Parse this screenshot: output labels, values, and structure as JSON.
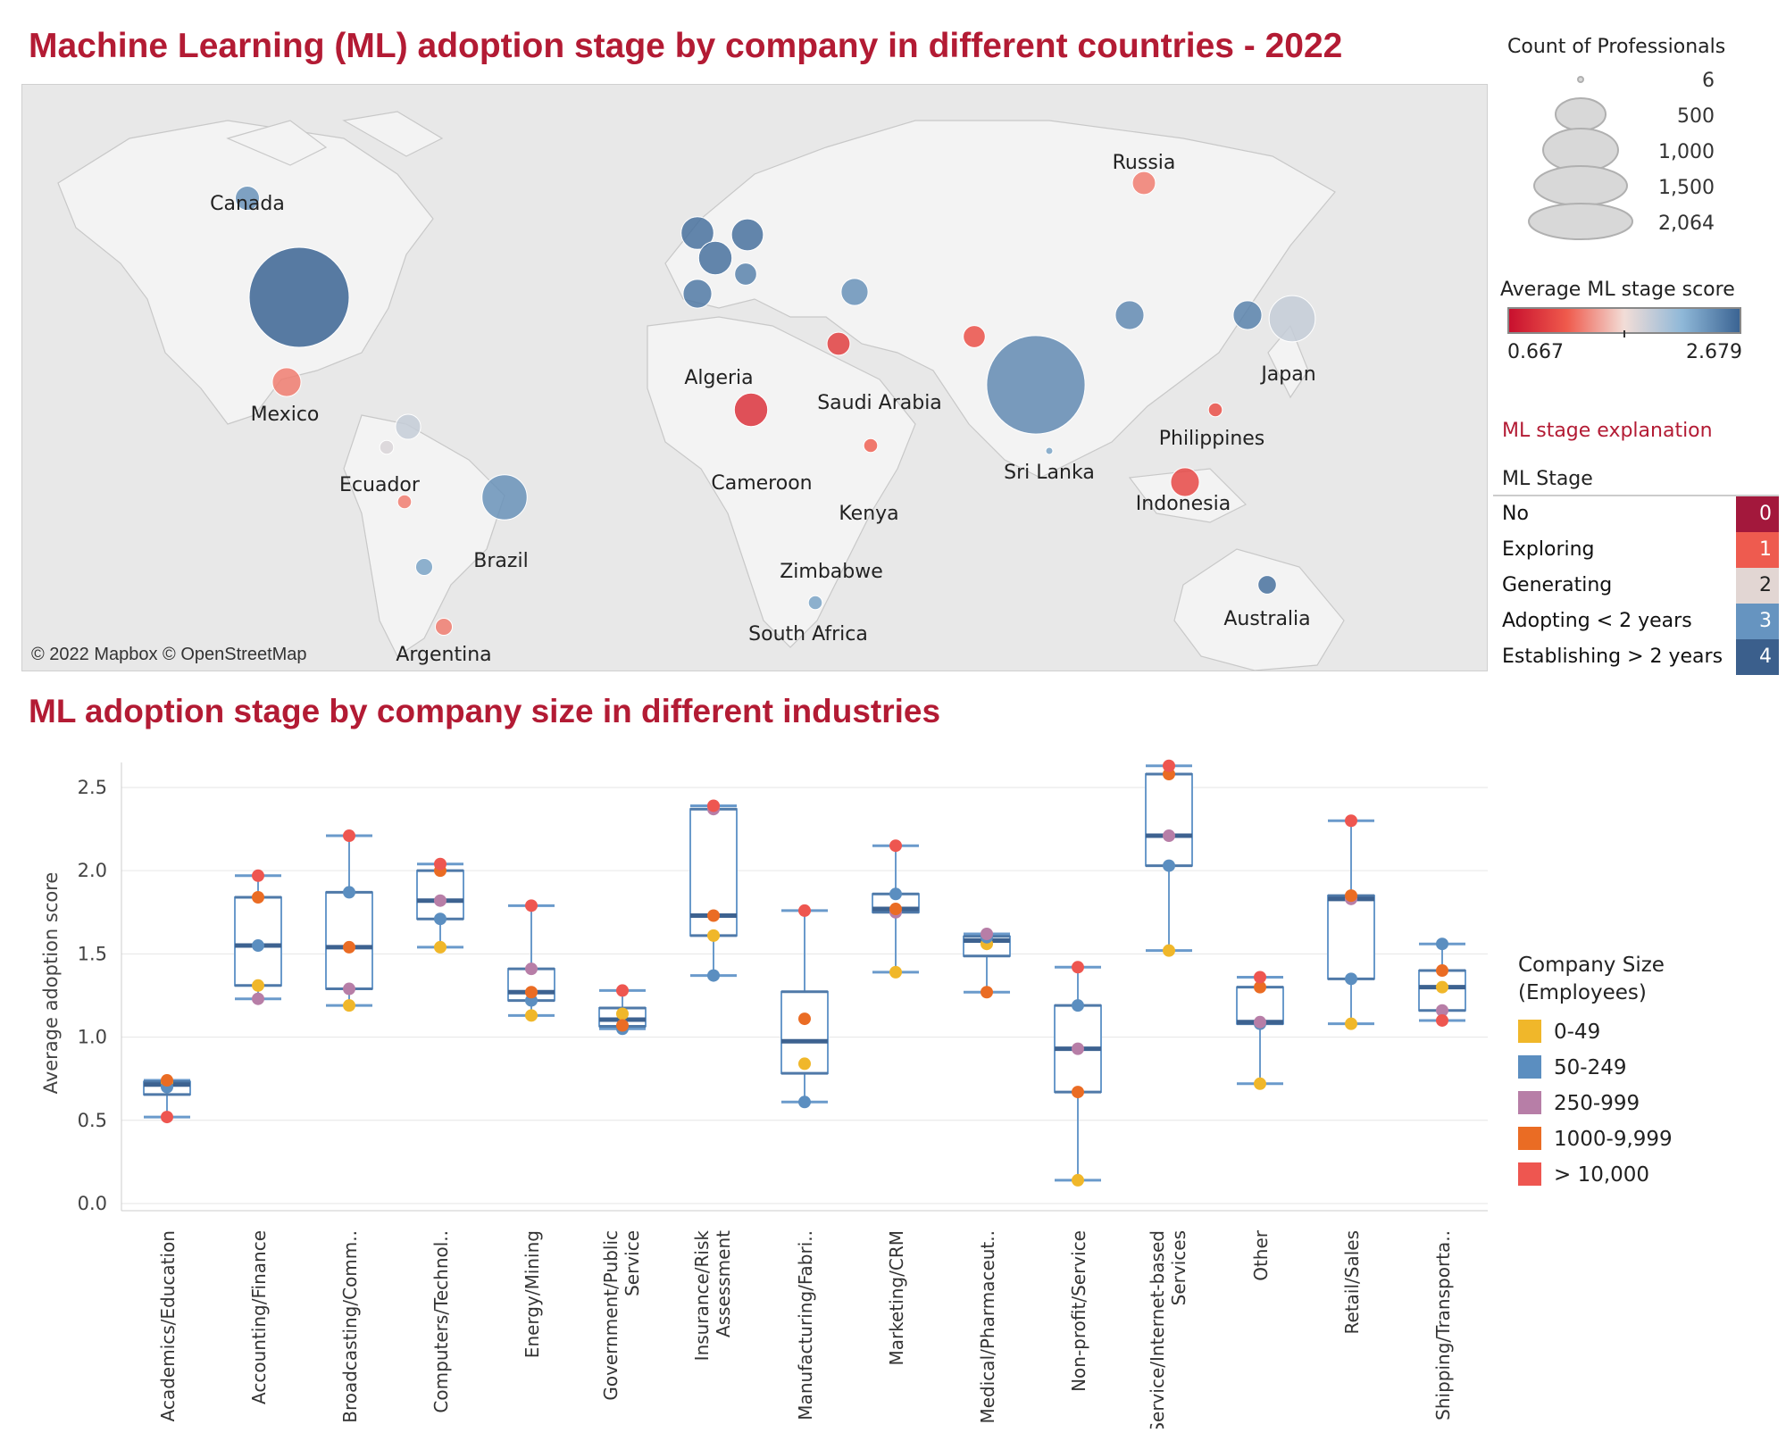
{
  "map_title": "Machine Learning (ML) adoption stage by company in different countries - 2022",
  "box_title": "ML adoption stage by company size in different industries",
  "attribution": "© 2022 Mapbox © OpenStreetMap",
  "legend": {
    "count_title": "Count of Professionals",
    "count_values": [
      "6",
      "500",
      "1,000",
      "1,500",
      "2,064"
    ],
    "avg_title": "Average ML stage score",
    "avg_min": "0.667",
    "avg_max": "2.679",
    "stage_explanation_title": "ML stage explanation",
    "stage_header": "ML Stage",
    "stages": [
      {
        "label": "No",
        "code": "0",
        "color": "#a3183c"
      },
      {
        "label": "Exploring",
        "code": "1",
        "color": "#ee5b4f"
      },
      {
        "label": "Generating",
        "code": "2",
        "color": "#e2d6d3"
      },
      {
        "label": "Adopting < 2 years",
        "code": "3",
        "color": "#6694c0"
      },
      {
        "label": "Establishing > 2 years",
        "code": "4",
        "color": "#3b5f8c"
      }
    ],
    "size_title_1": "Company Size",
    "size_title_2": "(Employees)",
    "sizes": [
      {
        "label": "0-49",
        "color": "#f0b72a"
      },
      {
        "label": "50-249",
        "color": "#5b8ec0"
      },
      {
        "label": "250-999",
        "color": "#b77ea7"
      },
      {
        "label": "1000-9,999",
        "color": "#ea6c24"
      },
      {
        "label": "> 10,000",
        "color": "#ee5650"
      }
    ]
  },
  "map": {
    "labels": [
      "Canada",
      "Mexico",
      "Ecuador",
      "Brazil",
      "Argentina",
      "Algeria",
      "Cameroon",
      "Saudi Arabia",
      "Kenya",
      "Zimbabwe",
      "South Africa",
      "Russia",
      "Japan",
      "Philippines",
      "Sri Lanka",
      "Indonesia",
      "Australia"
    ],
    "bubbles": [
      {
        "country": "United States",
        "count": 2064,
        "score": 2.679
      },
      {
        "country": "Canada",
        "count": 120,
        "score": 2.4
      },
      {
        "country": "Mexico",
        "count": 170,
        "score": 1.3
      },
      {
        "country": "Ecuador",
        "count": 40,
        "score": 1.8
      },
      {
        "country": "Colombia",
        "count": 130,
        "score": 1.9
      },
      {
        "country": "Peru",
        "count": 40,
        "score": 1.3
      },
      {
        "country": "Brazil",
        "count": 420,
        "score": 2.4
      },
      {
        "country": "Chile",
        "count": 60,
        "score": 2.3
      },
      {
        "country": "Argentina",
        "count": 60,
        "score": 1.3
      },
      {
        "country": "Russia",
        "count": 110,
        "score": 1.3
      },
      {
        "country": "India",
        "count": 2000,
        "score": 2.45
      },
      {
        "country": "Sri Lanka",
        "count": 10,
        "score": 2.3
      },
      {
        "country": "Japan",
        "count": 440,
        "score": 1.9
      },
      {
        "country": "China",
        "count": 170,
        "score": 2.45
      },
      {
        "country": "South Korea",
        "count": 170,
        "score": 2.5
      },
      {
        "country": "Philippines",
        "count": 40,
        "score": 1.1
      },
      {
        "country": "Indonesia",
        "count": 170,
        "score": 1.05
      },
      {
        "country": "Australia",
        "count": 70,
        "score": 2.6
      },
      {
        "country": "United Kingdom",
        "count": 220,
        "score": 2.6
      },
      {
        "country": "France",
        "count": 230,
        "score": 2.6
      },
      {
        "country": "Germany",
        "count": 210,
        "score": 2.6
      },
      {
        "country": "Spain",
        "count": 170,
        "score": 2.55
      },
      {
        "country": "Italy",
        "count": 100,
        "score": 2.5
      },
      {
        "country": "Turkey",
        "count": 150,
        "score": 2.4
      },
      {
        "country": "Nigeria",
        "count": 230,
        "score": 0.9
      },
      {
        "country": "Kenya",
        "count": 40,
        "score": 1.2
      },
      {
        "country": "Egypt",
        "count": 110,
        "score": 1.0
      },
      {
        "country": "South Africa",
        "count": 40,
        "score": 2.3
      },
      {
        "country": "Pakistan",
        "count": 100,
        "score": 1.1
      }
    ]
  },
  "chart_data": {
    "type": "box",
    "ylabel": "Average adoption score",
    "yticks": [
      "0.0",
      "0.5",
      "1.0",
      "1.5",
      "2.0",
      "2.5"
    ],
    "ylim": [
      0,
      2.65
    ],
    "categories": [
      "Academics/Education",
      "Accounting/Finance",
      "Broadcasting/Comm..",
      "Computers/Technol..",
      "Energy/Mining",
      "Government/Public Service",
      "Insurance/Risk Assessment",
      "Manufacturing/Fabri..",
      "Marketing/CRM",
      "Medical/Pharmaceut..",
      "Non-profit/Service",
      "Online Service/Internet-based Services",
      "Other",
      "Retail/Sales",
      "Shipping/Transporta.."
    ],
    "series_names": [
      "0-49",
      "50-249",
      "250-999",
      "1000-9,999",
      "> 10,000"
    ],
    "values": [
      [
        0.73,
        0.7,
        null,
        0.74,
        0.52
      ],
      [
        1.31,
        1.55,
        1.23,
        1.84,
        1.97
      ],
      [
        1.19,
        1.87,
        1.29,
        1.54,
        2.21
      ],
      [
        1.54,
        1.71,
        1.82,
        2.0,
        2.04
      ],
      [
        1.13,
        1.22,
        1.41,
        1.27,
        1.79
      ],
      [
        1.14,
        1.05,
        null,
        1.07,
        1.28
      ],
      [
        1.61,
        1.37,
        2.37,
        1.73,
        2.39
      ],
      [
        0.84,
        0.61,
        null,
        1.11,
        1.76
      ],
      [
        1.39,
        1.86,
        1.75,
        1.77,
        2.15
      ],
      [
        1.56,
        1.6,
        1.62,
        1.27,
        null
      ],
      [
        0.14,
        1.19,
        0.93,
        0.67,
        1.42
      ],
      [
        1.52,
        2.03,
        2.21,
        2.58,
        2.63
      ],
      [
        0.72,
        1.08,
        1.09,
        1.3,
        1.36
      ],
      [
        1.08,
        1.35,
        1.83,
        1.85,
        2.3
      ],
      [
        1.3,
        1.56,
        1.16,
        1.4,
        1.1
      ]
    ]
  }
}
